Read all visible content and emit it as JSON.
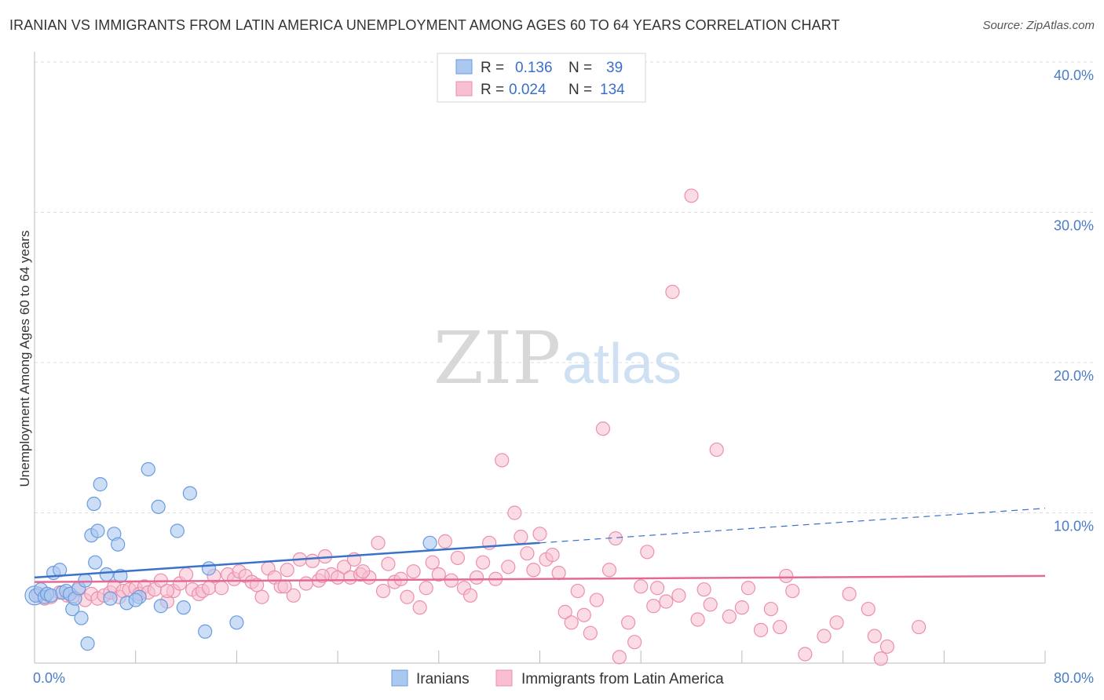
{
  "title": "IRANIAN VS IMMIGRANTS FROM LATIN AMERICA UNEMPLOYMENT AMONG AGES 60 TO 64 YEARS CORRELATION CHART",
  "source": "Source: ZipAtlas.com",
  "watermark": {
    "part1": "ZIP",
    "part2": "atlas"
  },
  "legend_top": {
    "rows": [
      {
        "r_label": "R =",
        "r_value": "0.136",
        "n_label": "N =",
        "n_value": "39"
      },
      {
        "r_label": "R =",
        "r_value": "0.024",
        "n_label": "N =",
        "n_value": "134"
      }
    ]
  },
  "legend_bottom": [
    "Iranians",
    "Immigrants from Latin America"
  ],
  "colors": {
    "iranians_fill": "#aac8f0",
    "iranians_stroke": "#6a9be0",
    "iranians_line": "#3a72c9",
    "latin_fill": "#f7bfd0",
    "latin_stroke": "#ec8fae",
    "latin_line": "#e46a95",
    "grid": "#dddddd",
    "tick_text": "#4a7cc7"
  },
  "chart_data": {
    "type": "scatter",
    "title": "IRANIAN VS IMMIGRANTS FROM LATIN AMERICA UNEMPLOYMENT AMONG AGES 60 TO 64 YEARS CORRELATION CHART",
    "xlabel": "",
    "ylabel": "Unemployment Among Ages 60 to 64 years",
    "xlim": [
      0,
      80
    ],
    "ylim": [
      0,
      42
    ],
    "x_tick_labels": [
      "0.0%",
      "80.0%"
    ],
    "y_ticks": [
      10,
      20,
      30,
      40
    ],
    "y_tick_labels": [
      "10.0%",
      "20.0%",
      "30.0%",
      "40.0%"
    ],
    "grid": true,
    "legend_placement": "top-center",
    "series": [
      {
        "name": "Iranians",
        "R": 0.136,
        "N": 39,
        "trend": {
          "x0": 0,
          "y0": 5.7,
          "x1": 40,
          "y1": 8.0,
          "dashed_to_x": 80,
          "dashed_to_y": 10.3
        },
        "points": [
          [
            0.1,
            4.5
          ],
          [
            0.5,
            4.9
          ],
          [
            0.8,
            4.4
          ],
          [
            1.0,
            4.6
          ],
          [
            1.3,
            4.5
          ],
          [
            1.5,
            6.0
          ],
          [
            2.0,
            6.2
          ],
          [
            2.2,
            4.7
          ],
          [
            2.5,
            4.8
          ],
          [
            2.8,
            4.6
          ],
          [
            3.0,
            3.6
          ],
          [
            3.2,
            4.3
          ],
          [
            3.5,
            5.0
          ],
          [
            3.7,
            3.0
          ],
          [
            4.0,
            5.5
          ],
          [
            4.2,
            1.3
          ],
          [
            4.5,
            8.5
          ],
          [
            4.7,
            10.6
          ],
          [
            4.8,
            6.7
          ],
          [
            5.0,
            8.8
          ],
          [
            5.2,
            11.9
          ],
          [
            5.7,
            5.9
          ],
          [
            6.3,
            8.6
          ],
          [
            6.6,
            7.9
          ],
          [
            6.8,
            5.8
          ],
          [
            7.3,
            4.0
          ],
          [
            8.3,
            4.4
          ],
          [
            9.0,
            12.9
          ],
          [
            9.8,
            10.4
          ],
          [
            10.0,
            3.8
          ],
          [
            11.3,
            8.8
          ],
          [
            11.8,
            3.7
          ],
          [
            12.3,
            11.3
          ],
          [
            13.5,
            2.1
          ],
          [
            13.8,
            6.3
          ],
          [
            16.0,
            2.7
          ],
          [
            6.0,
            4.3
          ],
          [
            8.0,
            4.2
          ],
          [
            31.3,
            8.0
          ]
        ]
      },
      {
        "name": "Immigrants from Latin America",
        "R": 0.024,
        "N": 134,
        "trend": {
          "x0": 0,
          "y0": 5.4,
          "x1": 80,
          "y1": 5.8
        },
        "points": [
          [
            0.3,
            4.6
          ],
          [
            0.8,
            4.3
          ],
          [
            1.3,
            4.4
          ],
          [
            2.0,
            4.7
          ],
          [
            2.6,
            4.5
          ],
          [
            3.0,
            4.4
          ],
          [
            3.5,
            4.9
          ],
          [
            4.0,
            4.2
          ],
          [
            4.5,
            4.6
          ],
          [
            5.0,
            4.3
          ],
          [
            5.5,
            4.5
          ],
          [
            6.0,
            4.7
          ],
          [
            6.3,
            5.1
          ],
          [
            6.7,
            4.4
          ],
          [
            7.0,
            4.8
          ],
          [
            7.5,
            4.9
          ],
          [
            8.0,
            5.0
          ],
          [
            8.3,
            4.6
          ],
          [
            8.7,
            5.1
          ],
          [
            9.0,
            4.7
          ],
          [
            9.5,
            4.9
          ],
          [
            10.0,
            5.5
          ],
          [
            10.5,
            4.1
          ],
          [
            11.0,
            4.8
          ],
          [
            11.5,
            5.3
          ],
          [
            12.0,
            5.9
          ],
          [
            12.5,
            4.9
          ],
          [
            13.0,
            4.6
          ],
          [
            13.3,
            4.8
          ],
          [
            13.8,
            5.0
          ],
          [
            14.2,
            5.8
          ],
          [
            14.8,
            5.0
          ],
          [
            15.3,
            5.9
          ],
          [
            15.8,
            5.6
          ],
          [
            16.2,
            6.1
          ],
          [
            16.7,
            5.8
          ],
          [
            17.2,
            5.4
          ],
          [
            17.6,
            5.2
          ],
          [
            18.0,
            4.4
          ],
          [
            18.5,
            6.3
          ],
          [
            19.0,
            5.7
          ],
          [
            19.5,
            5.1
          ],
          [
            20.0,
            6.2
          ],
          [
            20.5,
            4.5
          ],
          [
            21.0,
            6.9
          ],
          [
            21.5,
            5.3
          ],
          [
            22.0,
            6.8
          ],
          [
            22.5,
            5.5
          ],
          [
            23.0,
            7.1
          ],
          [
            23.5,
            5.9
          ],
          [
            24.0,
            5.7
          ],
          [
            24.5,
            6.4
          ],
          [
            25.0,
            5.7
          ],
          [
            25.3,
            6.9
          ],
          [
            25.8,
            5.9
          ],
          [
            26.5,
            5.7
          ],
          [
            27.2,
            8.0
          ],
          [
            27.6,
            4.8
          ],
          [
            28.0,
            6.6
          ],
          [
            28.5,
            5.4
          ],
          [
            29.0,
            5.6
          ],
          [
            29.5,
            4.4
          ],
          [
            30.0,
            6.1
          ],
          [
            30.5,
            3.7
          ],
          [
            31.0,
            5.0
          ],
          [
            31.5,
            6.7
          ],
          [
            32.0,
            5.9
          ],
          [
            32.5,
            8.1
          ],
          [
            33.0,
            5.5
          ],
          [
            33.5,
            7.0
          ],
          [
            34.0,
            5.0
          ],
          [
            34.5,
            4.5
          ],
          [
            35.0,
            5.7
          ],
          [
            35.5,
            6.7
          ],
          [
            36.0,
            8.0
          ],
          [
            36.5,
            5.6
          ],
          [
            37.0,
            13.5
          ],
          [
            37.5,
            6.4
          ],
          [
            38.0,
            10.0
          ],
          [
            38.5,
            8.4
          ],
          [
            39.0,
            7.3
          ],
          [
            39.5,
            6.2
          ],
          [
            40.0,
            8.6
          ],
          [
            40.5,
            6.9
          ],
          [
            41.0,
            7.2
          ],
          [
            41.5,
            6.0
          ],
          [
            42.0,
            3.4
          ],
          [
            42.5,
            2.7
          ],
          [
            43.0,
            4.8
          ],
          [
            43.5,
            3.2
          ],
          [
            44.0,
            2.0
          ],
          [
            44.5,
            4.2
          ],
          [
            45.0,
            15.6
          ],
          [
            45.5,
            6.2
          ],
          [
            46.0,
            8.3
          ],
          [
            46.3,
            0.4
          ],
          [
            47.0,
            2.7
          ],
          [
            47.5,
            1.4
          ],
          [
            48.0,
            5.1
          ],
          [
            48.5,
            7.4
          ],
          [
            49.0,
            3.8
          ],
          [
            49.3,
            5.0
          ],
          [
            50.0,
            4.1
          ],
          [
            50.5,
            24.7
          ],
          [
            51.0,
            4.5
          ],
          [
            52.0,
            31.1
          ],
          [
            52.5,
            2.9
          ],
          [
            53.0,
            4.9
          ],
          [
            53.5,
            3.9
          ],
          [
            54.0,
            14.2
          ],
          [
            55.0,
            3.1
          ],
          [
            56.0,
            3.7
          ],
          [
            56.5,
            5.0
          ],
          [
            57.5,
            2.2
          ],
          [
            58.3,
            3.6
          ],
          [
            59.0,
            2.4
          ],
          [
            59.5,
            5.8
          ],
          [
            60.0,
            4.8
          ],
          [
            61.0,
            0.6
          ],
          [
            62.5,
            1.8
          ],
          [
            63.5,
            2.7
          ],
          [
            64.5,
            4.6
          ],
          [
            66.0,
            3.6
          ],
          [
            66.5,
            1.8
          ],
          [
            67.0,
            0.3
          ],
          [
            67.5,
            1.1
          ],
          [
            70.0,
            2.4
          ],
          [
            10.5,
            4.8
          ],
          [
            22.8,
            5.8
          ],
          [
            26.0,
            6.1
          ],
          [
            19.8,
            5.1
          ]
        ]
      }
    ]
  }
}
